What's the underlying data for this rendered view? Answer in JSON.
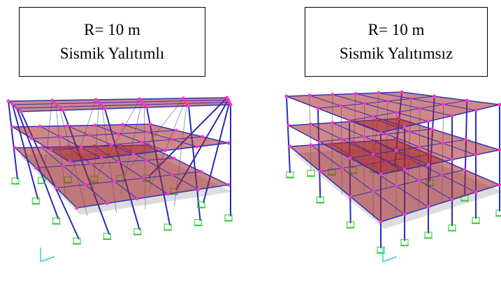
{
  "panels": [
    {
      "title": {
        "line1": "R= 10 m",
        "line2": "Sismik Yalıtımlı"
      }
    },
    {
      "title": {
        "line1": "R= 10 m",
        "line2": "Sismik Yalıtımsız"
      }
    }
  ]
}
